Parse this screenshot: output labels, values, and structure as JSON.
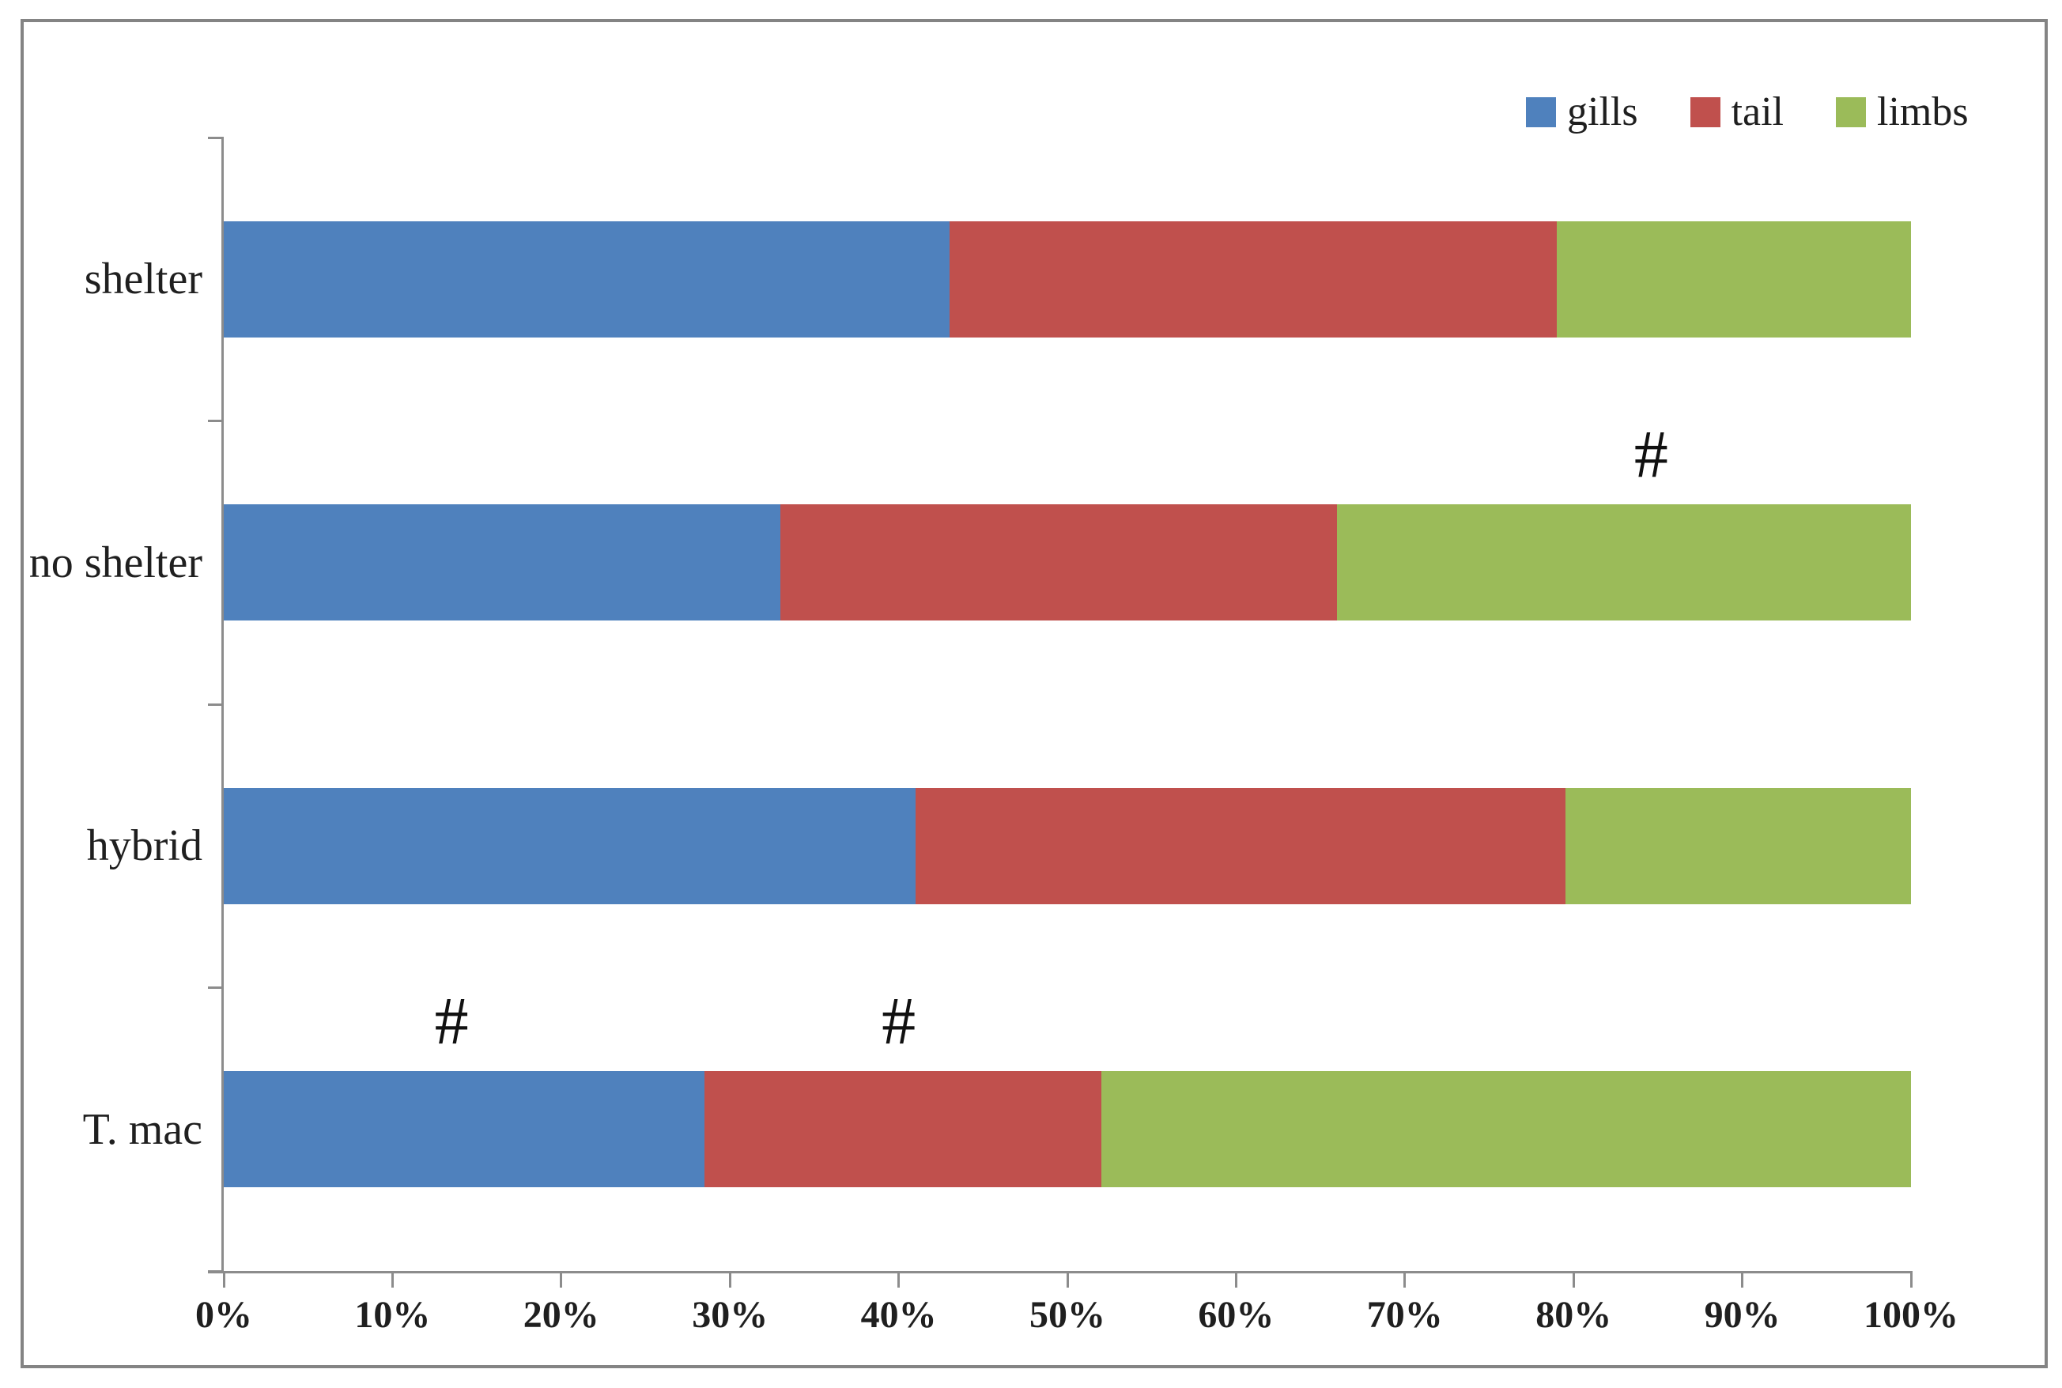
{
  "chart_data": {
    "type": "bar",
    "orientation": "horizontal",
    "stacked": true,
    "stack_unit": "percent",
    "title": "",
    "xlabel": "",
    "ylabel": "",
    "grid": false,
    "categories": [
      "shelter",
      "no shelter",
      "hybrid",
      "T. mac"
    ],
    "series": [
      {
        "name": "gills",
        "color": "#4F81BD",
        "values": [
          43,
          33,
          41,
          28.5
        ]
      },
      {
        "name": "tail",
        "color": "#C0504D",
        "values": [
          36,
          33,
          38.5,
          23.5
        ]
      },
      {
        "name": "limbs",
        "color": "#9BBB59",
        "values": [
          21,
          34,
          20.5,
          48
        ]
      }
    ],
    "x_axis": {
      "min": 0,
      "max": 100,
      "tick_labels": [
        "0%",
        "10%",
        "20%",
        "30%",
        "40%",
        "50%",
        "60%",
        "70%",
        "80%",
        "90%",
        "100%"
      ]
    },
    "legend_position": "top-right",
    "annotations": [
      {
        "text": "#",
        "category": "no shelter",
        "x_percent": 84.6
      },
      {
        "text": "#",
        "category": "T. mac",
        "x_percent": 13.5
      },
      {
        "text": "#",
        "category": "T. mac",
        "x_percent": 40
      }
    ],
    "colors": {
      "axis": "#8c8c8c",
      "border": "#848484",
      "text": "#1f1f1f"
    }
  }
}
